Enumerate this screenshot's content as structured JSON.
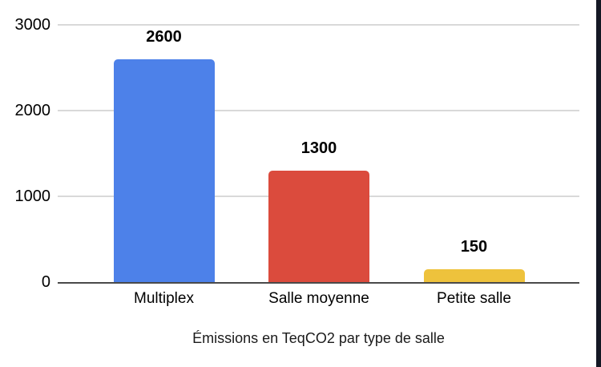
{
  "chart_data": {
    "type": "bar",
    "title": "Émissions en TeqCO2 par type de salle",
    "categories": [
      "Multiplex",
      "Salle moyenne",
      "Petite salle"
    ],
    "values": [
      2600,
      1300,
      150
    ],
    "data_labels": [
      "2600",
      "1300",
      "150"
    ],
    "bar_colors": [
      "#4d81e9",
      "#db4b3d",
      "#eec23c"
    ],
    "y_ticks": [
      0,
      1000,
      2000,
      3000
    ],
    "y_tick_labels": [
      "0",
      "1000",
      "2000",
      "3000"
    ],
    "ylim": [
      0,
      3000
    ],
    "xlabel": "",
    "ylabel": "",
    "grid": "horizontal",
    "legend_position": "none"
  },
  "colors": {
    "background": "#ffffff",
    "gridline": "#d9d9d9",
    "axis_line": "#4a4a4a",
    "label_text": "#000000",
    "title_text": "#1a1a1a",
    "window_edge": "#141824"
  }
}
